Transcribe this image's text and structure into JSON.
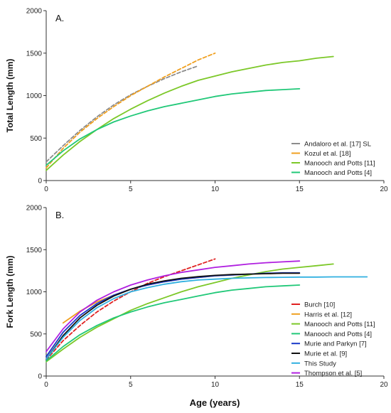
{
  "chart_data": [
    {
      "type": "line",
      "panel_label": "A.",
      "ylabel": "Total Length (mm)",
      "xlabel": "",
      "xlim": [
        0,
        20
      ],
      "ylim": [
        0,
        2000
      ],
      "xticks": [
        "0",
        "5",
        "10",
        "15",
        "20"
      ],
      "yticks": [
        "0",
        "500",
        "1000",
        "1500",
        "2000"
      ],
      "grid": false,
      "legend_position": "right-lower",
      "series": [
        {
          "name": "Andaloro et al. [17] SL",
          "color": "#8c8c8c",
          "dashed": true,
          "x": [
            0,
            1,
            2,
            3,
            4,
            5,
            6,
            7,
            8,
            9
          ],
          "y": [
            220,
            410,
            590,
            750,
            890,
            1010,
            1110,
            1200,
            1280,
            1350
          ]
        },
        {
          "name": "Kozul et al. [18]",
          "color": "#f0a020",
          "dashed": true,
          "x": [
            0,
            1,
            2,
            3,
            4,
            5,
            6,
            7,
            8,
            9,
            10
          ],
          "y": [
            150,
            380,
            570,
            730,
            870,
            1000,
            1110,
            1220,
            1320,
            1420,
            1500
          ]
        },
        {
          "name": "Manooch and Potts [11]",
          "color": "#7cc828",
          "dashed": false,
          "x": [
            0,
            1,
            2,
            3,
            4,
            5,
            6,
            7,
            8,
            9,
            10,
            11,
            12,
            13,
            14,
            15,
            16,
            17
          ],
          "y": [
            120,
            300,
            460,
            600,
            730,
            840,
            940,
            1030,
            1110,
            1180,
            1230,
            1280,
            1320,
            1360,
            1390,
            1410,
            1440,
            1460
          ]
        },
        {
          "name": "Manooch and Potts [4]",
          "color": "#20c878",
          "dashed": false,
          "x": [
            0,
            1,
            2,
            3,
            4,
            5,
            6,
            7,
            8,
            9,
            10,
            11,
            12,
            13,
            14,
            15
          ],
          "y": [
            180,
            350,
            490,
            600,
            690,
            760,
            820,
            870,
            910,
            950,
            990,
            1020,
            1040,
            1060,
            1070,
            1080
          ]
        }
      ]
    },
    {
      "type": "line",
      "panel_label": "B.",
      "ylabel": "Fork Length (mm)",
      "xlabel": "Age (years)",
      "xlim": [
        0,
        20
      ],
      "ylim": [
        0,
        2000
      ],
      "xticks": [
        "0",
        "5",
        "10",
        "15",
        "20"
      ],
      "yticks": [
        "0",
        "500",
        "1000",
        "1500",
        "2000"
      ],
      "grid": false,
      "legend_position": "right-lower",
      "series": [
        {
          "name": "Burch [10]",
          "color": "#e02020",
          "dashed": true,
          "x": [
            0,
            1,
            2,
            3,
            4,
            5,
            6,
            7,
            8,
            9,
            10
          ],
          "y": [
            190,
            420,
            600,
            760,
            890,
            1000,
            1100,
            1180,
            1250,
            1320,
            1390
          ]
        },
        {
          "name": "Harris et al. [12]",
          "color": "#f0a020",
          "dashed": false,
          "x": [
            1,
            2,
            3,
            4,
            5,
            6,
            7,
            8,
            9,
            10,
            11,
            12,
            13,
            14,
            15
          ],
          "y": [
            630,
            770,
            880,
            960,
            1030,
            1080,
            1120,
            1150,
            1170,
            1190,
            1200,
            1210,
            1215,
            1220,
            1220
          ]
        },
        {
          "name": "Manooch and Potts [11]",
          "color": "#7cc828",
          "dashed": false,
          "x": [
            0,
            1,
            2,
            3,
            4,
            5,
            6,
            7,
            8,
            9,
            10,
            11,
            12,
            13,
            14,
            15,
            16,
            17
          ],
          "y": [
            170,
            320,
            460,
            580,
            680,
            780,
            860,
            930,
            1000,
            1060,
            1110,
            1160,
            1200,
            1240,
            1270,
            1290,
            1310,
            1330
          ]
        },
        {
          "name": "Manooch and Potts [4]",
          "color": "#20c878",
          "dashed": false,
          "x": [
            0,
            1,
            2,
            3,
            4,
            5,
            6,
            7,
            8,
            9,
            10,
            11,
            12,
            13,
            14,
            15
          ],
          "y": [
            180,
            350,
            490,
            600,
            690,
            760,
            820,
            870,
            910,
            950,
            990,
            1020,
            1040,
            1060,
            1070,
            1080
          ]
        },
        {
          "name": "Murie and Parkyn [7]",
          "color": "#1838c8",
          "dashed": false,
          "x": [
            0,
            1,
            2,
            3,
            4,
            5,
            6,
            7,
            8,
            9,
            10,
            11,
            12,
            13,
            14,
            15
          ],
          "y": [
            230,
            520,
            720,
            860,
            960,
            1030,
            1080,
            1120,
            1150,
            1170,
            1190,
            1200,
            1210,
            1220,
            1225,
            1225
          ]
        },
        {
          "name": "Murie et al. [9]",
          "color": "#111111",
          "dashed": false,
          "x": [
            0,
            1,
            2,
            3,
            4,
            5,
            6,
            7,
            8,
            9,
            10,
            11,
            12,
            13,
            14,
            15
          ],
          "y": [
            200,
            480,
            690,
            840,
            950,
            1030,
            1090,
            1130,
            1160,
            1180,
            1195,
            1205,
            1210,
            1215,
            1220,
            1220
          ]
        },
        {
          "name": "This Study",
          "color": "#30b0e0",
          "dashed": false,
          "x": [
            0,
            1,
            2,
            3,
            4,
            5,
            6,
            7,
            8,
            9,
            10,
            11,
            12,
            13,
            14,
            15,
            16,
            17,
            18,
            19
          ],
          "y": [
            200,
            460,
            660,
            810,
            920,
            1000,
            1050,
            1090,
            1120,
            1140,
            1150,
            1160,
            1165,
            1170,
            1172,
            1175,
            1175,
            1177,
            1177,
            1177
          ]
        },
        {
          "name": "Thompson et al. [5]",
          "color": "#b020e0",
          "dashed": false,
          "x": [
            0,
            1,
            2,
            3,
            4,
            5,
            6,
            7,
            8,
            9,
            10,
            11,
            12,
            13,
            14,
            15
          ],
          "y": [
            290,
            560,
            760,
            900,
            1000,
            1080,
            1140,
            1190,
            1230,
            1260,
            1290,
            1310,
            1330,
            1345,
            1355,
            1365
          ]
        }
      ]
    }
  ]
}
